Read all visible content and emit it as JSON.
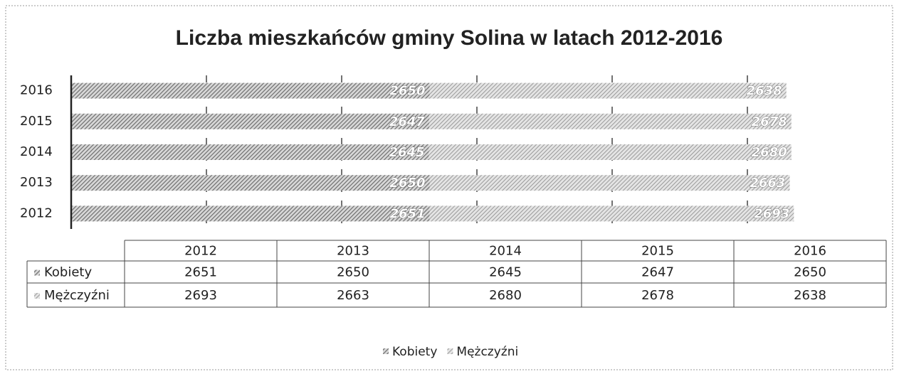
{
  "chart_data": {
    "type": "stacked_barh",
    "title": "Liczba mieszkańców gminy Solina w latach 2012-2016",
    "categories": [
      "2012",
      "2013",
      "2014",
      "2015",
      "2016"
    ],
    "series": [
      {
        "name": "Kobiety",
        "color": "#6e6e6e",
        "values": [
          2651,
          2650,
          2645,
          2647,
          2650
        ]
      },
      {
        "name": "Mężczyźni",
        "color": "#9a9a9a",
        "values": [
          2693,
          2663,
          2680,
          2678,
          2638
        ]
      }
    ],
    "xlim": [
      0,
      6000
    ],
    "xticks": [
      0,
      1000,
      2000,
      3000,
      4000,
      5000
    ],
    "grid": true
  }
}
